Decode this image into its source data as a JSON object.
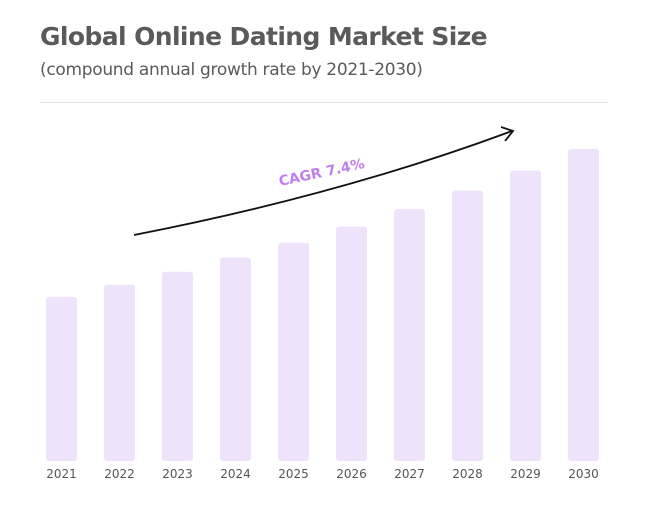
{
  "title": "Global Online Dating Market Size",
  "subtitle": "(compound annual growth rate by 2021-2030)",
  "colors": {
    "bar": "#efe2fb",
    "annotation": "#c07ef0",
    "arrow": "#111111",
    "text": "#5a5a5a"
  },
  "chart_data": {
    "type": "bar",
    "categories": [
      "2021",
      "2022",
      "2023",
      "2024",
      "2025",
      "2026",
      "2027",
      "2028",
      "2029",
      "2030"
    ],
    "values": [
      100,
      107.4,
      115.3,
      123.9,
      133.0,
      142.9,
      153.5,
      164.8,
      177.0,
      190.1
    ],
    "annotation": "CAGR 7.4%",
    "axis_values_shown": false,
    "grid": false
  }
}
